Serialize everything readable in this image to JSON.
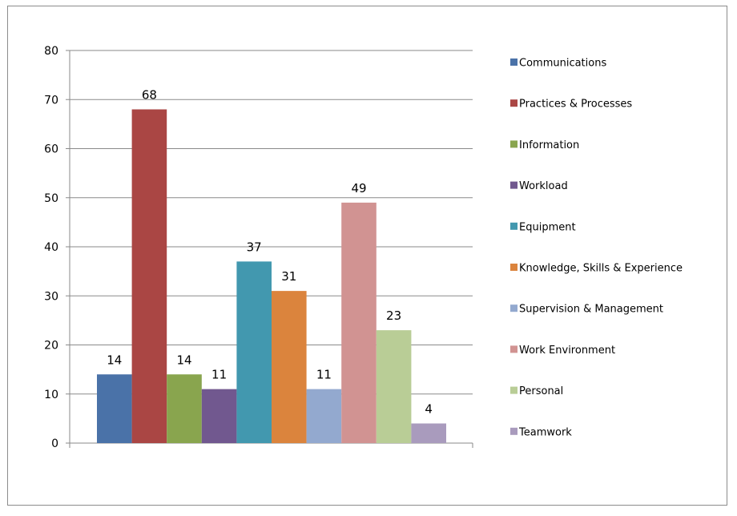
{
  "chart_data": {
    "type": "bar",
    "title": "",
    "xlabel": "",
    "ylabel": "",
    "ylim": [
      0,
      80
    ],
    "yticks": [
      0,
      10,
      20,
      30,
      40,
      50,
      60,
      70,
      80
    ],
    "grid": true,
    "legend_position": "right",
    "series": [
      {
        "name": "Communications",
        "value": 14,
        "color": "#4A72A8"
      },
      {
        "name": "Practices & Processes",
        "value": 68,
        "color": "#AA4644"
      },
      {
        "name": "Information",
        "value": 14,
        "color": "#89A54E"
      },
      {
        "name": "Workload",
        "value": 11,
        "color": "#71588F"
      },
      {
        "name": "Equipment",
        "value": 37,
        "color": "#4298AF"
      },
      {
        "name": "Knowledge, Skills & Experience",
        "value": 31,
        "color": "#DB843D"
      },
      {
        "name": "Supervision & Management",
        "value": 11,
        "color": "#93A9CF"
      },
      {
        "name": "Work Environment",
        "value": 49,
        "color": "#D19392"
      },
      {
        "name": "Personal",
        "value": 23,
        "color": "#B9CD96"
      },
      {
        "name": "Teamwork",
        "value": 4,
        "color": "#A99BBD"
      }
    ]
  }
}
